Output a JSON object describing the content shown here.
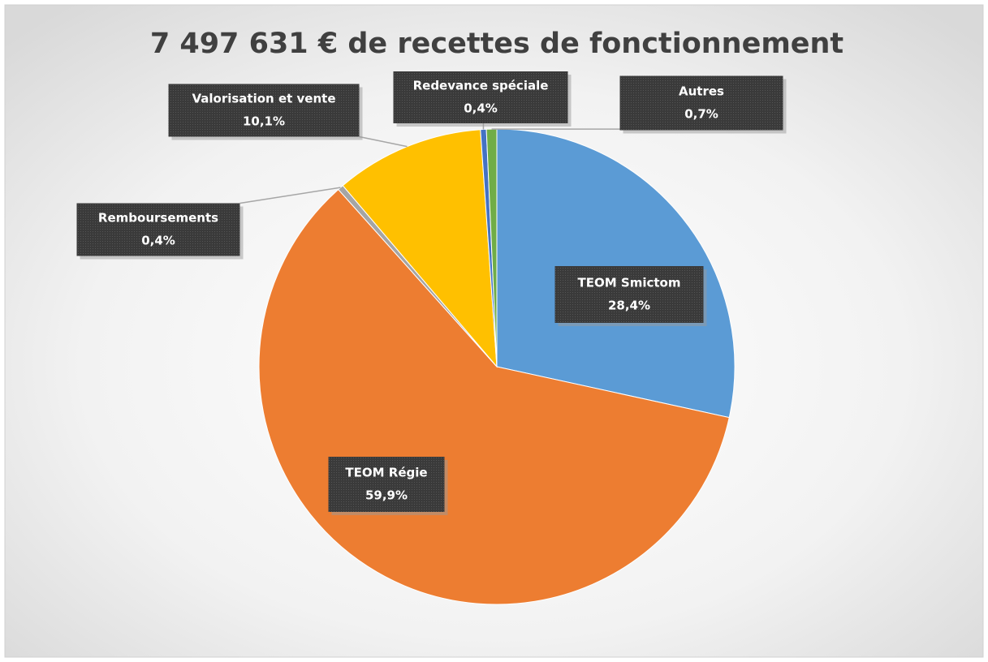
{
  "chart_data": {
    "type": "pie",
    "title": "7 497 631 € de recettes de fonctionnement",
    "categories": [
      "TEOM  Smictom",
      "TEOM Régie",
      "Remboursements",
      "Valorisation et vente",
      "Redevance spéciale",
      "Autres"
    ],
    "values": [
      28.4,
      59.9,
      0.4,
      10.1,
      0.4,
      0.7
    ],
    "value_labels": [
      "28,4%",
      "59,9%",
      "0,4%",
      "10,1%",
      "0,4%",
      "0,7%"
    ],
    "colors": [
      "#5b9bd5",
      "#ed7d31",
      "#a5a5a5",
      "#ffc000",
      "#4472c4",
      "#70ad47"
    ]
  }
}
